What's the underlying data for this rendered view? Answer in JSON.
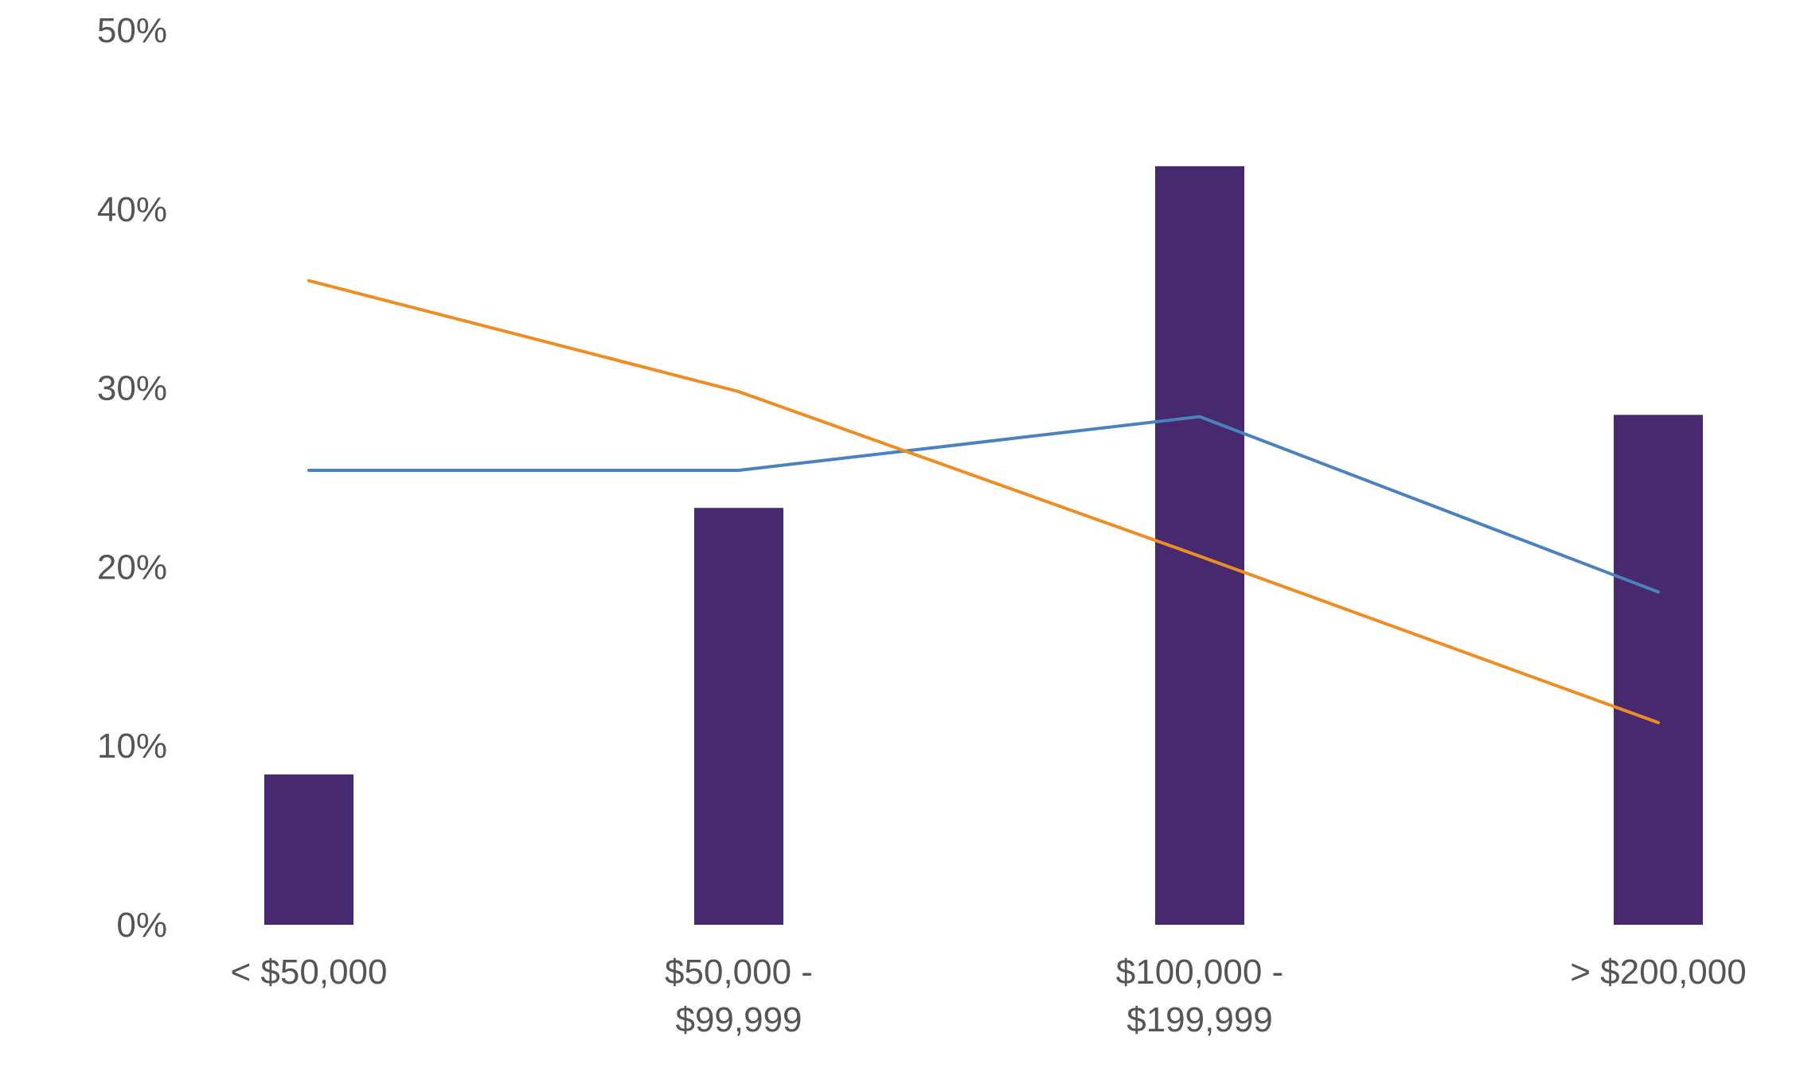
{
  "chart_data": {
    "type": "bar",
    "categories": [
      [
        "< $50,000"
      ],
      [
        "$50,000 -",
        "$99,999"
      ],
      [
        "$100,000 -",
        "$199,999"
      ],
      [
        "> $200,000"
      ]
    ],
    "ylim": [
      0,
      50
    ],
    "yticks": [
      0,
      10,
      20,
      30,
      40,
      50
    ],
    "ytick_labels": [
      "0%",
      "10%",
      "20%",
      "30%",
      "40%",
      "50%"
    ],
    "grid": false,
    "legend": "none",
    "series": [
      {
        "type": "bar",
        "color": "#46296E",
        "values": [
          8.4,
          23.3,
          42.4,
          28.5
        ]
      },
      {
        "type": "line",
        "color": "#4A82BF",
        "values": [
          25.4,
          25.4,
          28.4,
          18.6
        ]
      },
      {
        "type": "line",
        "color": "#EE8D24",
        "values": [
          36.0,
          29.8,
          20.6,
          11.3
        ]
      }
    ]
  }
}
